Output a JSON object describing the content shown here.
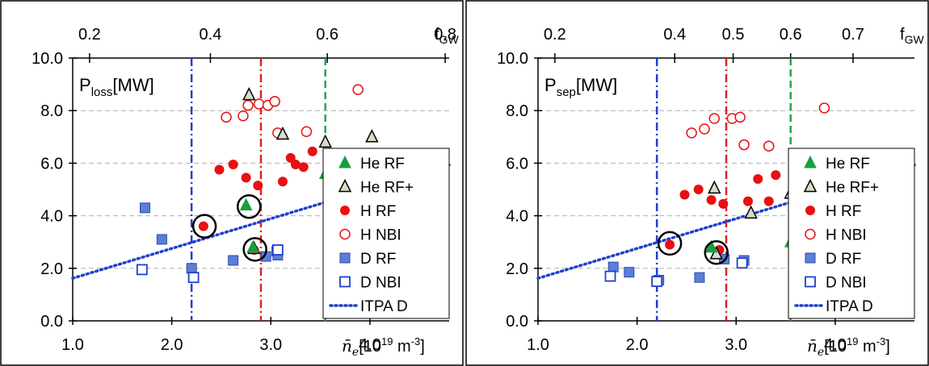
{
  "chart_data": [
    {
      "type": "scatter",
      "title": "",
      "ylabel_main": "P",
      "ylabel_sub": "loss",
      "ylabel_unit": "[MW]",
      "xlabel_main": "n̄",
      "xlabel_sub": "e",
      "xlabel_unit": "[10",
      "xlabel_sup": "19",
      "xlabel_tail": " m",
      "xlabel_sup2": "-3",
      "xlabel_close": "]",
      "top_label_main": "f",
      "top_label_sub": "GW",
      "xlim": [
        1.0,
        4.8
      ],
      "ylim": [
        0.0,
        10.0
      ],
      "x_ticks": [
        "1.0",
        "2.0",
        "3.0",
        "4.0"
      ],
      "x_tick_values": [
        1.0,
        2.0,
        3.0,
        4.0
      ],
      "y_ticks": [
        "0.0",
        "2.0",
        "4.0",
        "6.0",
        "8.0",
        "10.0"
      ],
      "y_tick_values": [
        0,
        2,
        4,
        6,
        8,
        10
      ],
      "top_ticks": [
        "0.2",
        "0.4",
        "0.6",
        "0.8"
      ],
      "top_tick_positions": [
        1.17,
        2.39,
        3.57,
        4.76
      ],
      "grid": "horizontal dashed",
      "legend_position": "right",
      "vlines": [
        {
          "x": 2.2,
          "color": "#1f3fd0",
          "style": "dashdot"
        },
        {
          "x": 2.9,
          "color": "#e02020",
          "style": "dashdot"
        },
        {
          "x": 3.55,
          "color": "#22a84a",
          "style": "dashed"
        }
      ],
      "series": [
        {
          "name": "He RF",
          "marker": "triangle-filled",
          "color": "#18a03a",
          "points": [
            [
              2.75,
              4.4
            ],
            [
              2.82,
              2.8
            ],
            [
              3.55,
              5.6
            ],
            [
              3.95,
              5.9
            ]
          ]
        },
        {
          "name": "He RF+",
          "marker": "triangle-open",
          "color": "#000000",
          "points": [
            [
              2.78,
              8.6
            ],
            [
              3.12,
              7.1
            ],
            [
              3.55,
              6.8
            ],
            [
              4.02,
              7.0
            ],
            [
              2.83,
              2.75
            ]
          ]
        },
        {
          "name": "H RF",
          "marker": "circle-filled",
          "color": "#e81010",
          "points": [
            [
              2.32,
              3.6
            ],
            [
              2.48,
              5.75
            ],
            [
              2.62,
              5.95
            ],
            [
              2.75,
              5.45
            ],
            [
              2.87,
              5.15
            ],
            [
              3.12,
              5.3
            ],
            [
              3.2,
              6.2
            ],
            [
              3.25,
              5.95
            ],
            [
              3.33,
              5.85
            ],
            [
              3.42,
              6.45
            ],
            [
              2.83,
              2.7
            ]
          ]
        },
        {
          "name": "H NBI",
          "marker": "circle-open",
          "color": "#e81010",
          "points": [
            [
              2.55,
              7.75
            ],
            [
              2.72,
              7.8
            ],
            [
              2.77,
              8.2
            ],
            [
              2.88,
              8.25
            ],
            [
              2.97,
              8.2
            ],
            [
              3.04,
              8.35
            ],
            [
              3.07,
              7.15
            ],
            [
              3.36,
              7.2
            ],
            [
              3.88,
              8.8
            ]
          ]
        },
        {
          "name": "D RF",
          "marker": "square-filled",
          "color": "#5b7ed6",
          "points": [
            [
              1.73,
              4.3
            ],
            [
              1.9,
              3.1
            ],
            [
              2.2,
              2.0
            ],
            [
              2.62,
              2.3
            ],
            [
              3.06,
              2.65
            ],
            [
              3.07,
              2.5
            ],
            [
              3.82,
              5.0
            ],
            [
              2.95,
              2.45
            ]
          ]
        },
        {
          "name": "D NBI",
          "marker": "square-open",
          "color": "#1f3fd0",
          "points": [
            [
              1.7,
              1.95
            ],
            [
              2.22,
              1.65
            ],
            [
              3.64,
              4.1
            ],
            [
              3.07,
              2.7
            ]
          ]
        },
        {
          "name": "ITPA D",
          "marker": "dotted-line",
          "color": "#1f3fd0",
          "points": [
            [
              1.0,
              1.62
            ],
            [
              4.8,
              5.93
            ]
          ]
        }
      ],
      "circled_points": [
        [
          2.33,
          3.6
        ],
        [
          2.78,
          4.35
        ],
        [
          2.84,
          2.72
        ]
      ]
    },
    {
      "type": "scatter",
      "title": "",
      "ylabel_main": "P",
      "ylabel_sub": "sep",
      "ylabel_unit": "[MW]",
      "xlabel_main": "n̄",
      "xlabel_sub": "e",
      "xlabel_unit": "[10",
      "xlabel_sup": "19",
      "xlabel_tail": " m",
      "xlabel_sup2": "-3",
      "xlabel_close": "]",
      "top_label_main": "f",
      "top_label_sub": "GW",
      "xlim": [
        1.0,
        4.8
      ],
      "ylim": [
        0.0,
        10.0
      ],
      "x_ticks": [
        "1.0",
        "2.0",
        "3.0",
        "4.0"
      ],
      "x_tick_values": [
        1.0,
        2.0,
        3.0,
        4.0
      ],
      "y_ticks": [
        "0.0",
        "2.0",
        "4.0",
        "6.0",
        "8.0",
        "10.0"
      ],
      "y_tick_values": [
        0,
        2,
        4,
        6,
        8,
        10
      ],
      "top_ticks": [
        "0.2",
        "0.4",
        "0.5",
        "0.6",
        "0.7"
      ],
      "top_tick_positions": [
        1.17,
        2.38,
        2.97,
        3.55,
        4.18
      ],
      "grid": "horizontal dashed",
      "legend_position": "right",
      "vlines": [
        {
          "x": 2.2,
          "color": "#1f3fd0",
          "style": "dashdot"
        },
        {
          "x": 2.9,
          "color": "#e02020",
          "style": "dashdot"
        },
        {
          "x": 3.55,
          "color": "#22a84a",
          "style": "dashed"
        }
      ],
      "series": [
        {
          "name": "He RF",
          "marker": "triangle-filled",
          "color": "#18a03a",
          "points": [
            [
              2.75,
              2.8
            ],
            [
              3.55,
              3.0
            ],
            [
              3.95,
              3.25
            ]
          ]
        },
        {
          "name": "He RF+",
          "marker": "triangle-open",
          "color": "#000000",
          "points": [
            [
              2.78,
              5.05
            ],
            [
              3.15,
              4.1
            ],
            [
              3.55,
              4.85
            ],
            [
              4.04,
              4.1
            ],
            [
              2.8,
              2.55
            ]
          ]
        },
        {
          "name": "H RF",
          "marker": "circle-filled",
          "color": "#e81010",
          "points": [
            [
              2.33,
              2.9
            ],
            [
              2.48,
              4.8
            ],
            [
              2.62,
              5.0
            ],
            [
              2.75,
              4.6
            ],
            [
              2.87,
              4.45
            ],
            [
              3.12,
              4.55
            ],
            [
              3.22,
              5.4
            ],
            [
              3.33,
              4.55
            ],
            [
              3.4,
              5.55
            ],
            [
              2.83,
              2.7
            ]
          ]
        },
        {
          "name": "H NBI",
          "marker": "circle-open",
          "color": "#e81010",
          "points": [
            [
              2.55,
              7.15
            ],
            [
              2.68,
              7.3
            ],
            [
              2.78,
              7.7
            ],
            [
              2.96,
              7.7
            ],
            [
              3.04,
              7.75
            ],
            [
              3.08,
              6.7
            ],
            [
              3.33,
              6.65
            ],
            [
              3.89,
              8.1
            ]
          ]
        },
        {
          "name": "D RF",
          "marker": "square-filled",
          "color": "#5b7ed6",
          "points": [
            [
              1.76,
              2.05
            ],
            [
              1.92,
              1.85
            ],
            [
              2.22,
              1.55
            ],
            [
              2.63,
              1.65
            ],
            [
              3.08,
              2.3
            ],
            [
              3.82,
              3.05
            ],
            [
              2.88,
              2.35
            ]
          ]
        },
        {
          "name": "D NBI",
          "marker": "square-open",
          "color": "#1f3fd0",
          "points": [
            [
              1.73,
              1.7
            ],
            [
              2.2,
              1.5
            ],
            [
              3.06,
              2.2
            ],
            [
              3.65,
              2.95
            ]
          ]
        },
        {
          "name": "ITPA D",
          "marker": "dotted-line",
          "color": "#1f3fd0",
          "points": [
            [
              1.0,
              1.62
            ],
            [
              4.8,
              5.93
            ]
          ]
        }
      ],
      "circled_points": [
        [
          2.33,
          2.95
        ],
        [
          2.8,
          2.6
        ]
      ]
    }
  ]
}
